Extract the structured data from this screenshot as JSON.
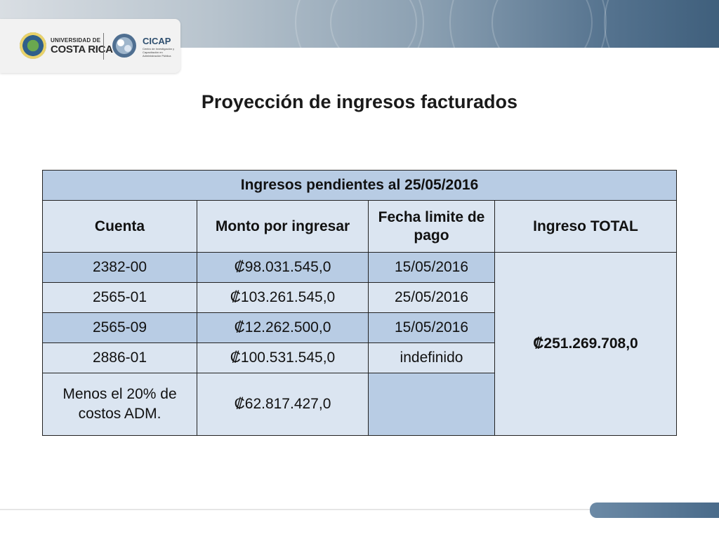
{
  "header": {
    "ucr_line1": "UNIVERSIDAD DE",
    "ucr_line2": "COSTA RICA",
    "cicap_name": "CICAP",
    "cicap_subtitle": "Centro de Investigación y Capacitación en Administración Pública"
  },
  "title": "Proyección de ingresos facturados",
  "table": {
    "caption": "Ingresos pendientes  al 25/05/2016",
    "columns": [
      "Cuenta",
      "Monto por ingresar",
      "Fecha limite de pago",
      "Ingreso TOTAL"
    ],
    "rows": [
      {
        "cuenta": "2382-00",
        "monto": "₡98.031.545,0",
        "fecha": "15/05/2016"
      },
      {
        "cuenta": "2565-01",
        "monto": "₡103.261.545,0",
        "fecha": "25/05/2016"
      },
      {
        "cuenta": "2565-09",
        "monto": "₡12.262.500,0",
        "fecha": "15/05/2016"
      },
      {
        "cuenta": "2886-01",
        "monto": "₡100.531.545,0",
        "fecha": "indefinido"
      },
      {
        "cuenta": "Menos el 20% de costos ADM.",
        "monto": "₡62.817.427,0",
        "fecha": ""
      }
    ],
    "total": "₡251.269.708,0"
  },
  "colors": {
    "header_blue": "#b8cce4",
    "light_blue": "#dbe5f1",
    "banner_dark": "#3f5f7c"
  }
}
